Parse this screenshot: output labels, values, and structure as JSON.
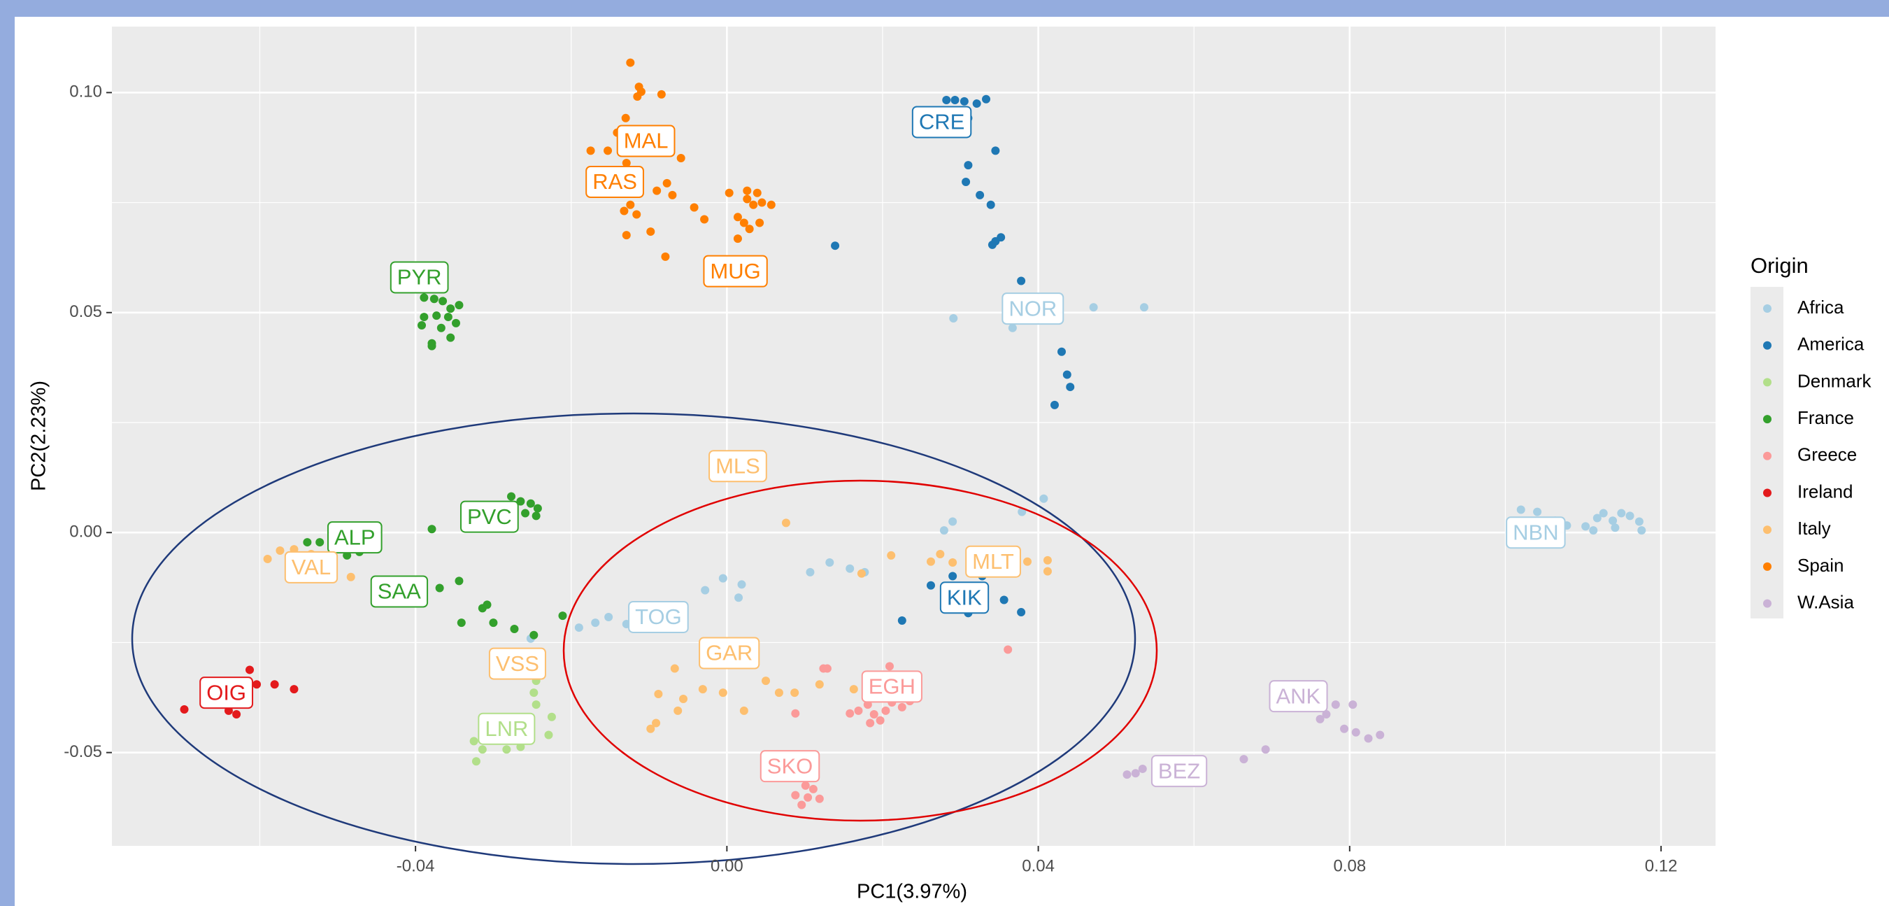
{
  "chart_data": {
    "type": "scatter",
    "xlabel": "PC1(3.97%)",
    "ylabel": "PC2(2.23%)",
    "legend_title": "Origin",
    "legend_position": "right",
    "grid": true,
    "xlim": [
      -0.079,
      0.127
    ],
    "ylim": [
      -0.0712,
      0.115
    ],
    "xticks": [
      -0.04,
      {
        "value": 0,
        "label": "0.00"
      },
      0.04,
      0.08,
      0.12
    ],
    "yticks": [
      -0.05,
      {
        "value": 0,
        "label": "0.00"
      },
      0.05,
      {
        "value": 0.1,
        "label": "0.10"
      }
    ],
    "xgrid_minor": [
      -0.06,
      -0.02,
      0.02,
      0.06,
      0.1
    ],
    "ygrid_minor": [
      -0.025,
      0.025,
      0.075
    ],
    "series": [
      {
        "name": "Africa",
        "color": "#a6cee3",
        "x": [
          0.0291,
          0.0367,
          0.0471,
          0.0536,
          0.0381,
          0.102,
          0.1041,
          0.1064,
          0.1079,
          0.1103,
          0.1118,
          0.1126,
          0.1138,
          0.1149,
          0.116,
          0.1172,
          0.1175,
          0.1141,
          0.1113,
          -0.019,
          -0.0169,
          -0.0129,
          -0.0113,
          -0.0028,
          -0.0005,
          0.0019,
          0.0015,
          0.0107,
          0.0132,
          0.0158,
          0.0177,
          0.0279,
          0.029,
          0.0379,
          0.0407,
          -0.0252,
          -0.0152
        ],
        "y": [
          0.0487,
          0.0465,
          0.0512,
          0.0512,
          0.0504,
          0.0052,
          0.0047,
          0.0027,
          0.0016,
          0.0014,
          0.0033,
          0.0044,
          0.0027,
          0.0044,
          0.0038,
          0.0025,
          0.0005,
          0.0011,
          0.0005,
          -0.0216,
          -0.0205,
          -0.0208,
          -0.0186,
          -0.0131,
          -0.0104,
          -0.0118,
          -0.0148,
          -0.009,
          -0.0068,
          -0.0082,
          -0.009,
          0.0005,
          0.0025,
          0.0047,
          0.0077,
          -0.0241,
          -0.0192
        ]
      },
      {
        "name": "America",
        "color": "#1f78b4",
        "x": [
          0.0282,
          0.0293,
          0.0305,
          0.0321,
          0.0333,
          0.031,
          0.0345,
          0.031,
          0.0307,
          0.0325,
          0.0339,
          0.0345,
          0.0352,
          0.0341,
          0.0139,
          0.0378,
          0.043,
          0.0437,
          0.0441,
          0.0421,
          0.0262,
          0.0285,
          0.031,
          0.0356,
          0.0378,
          0.0225,
          0.0328,
          0.029
        ],
        "y": [
          0.0983,
          0.0983,
          0.098,
          0.0975,
          0.0985,
          0.0942,
          0.0868,
          0.0835,
          0.0797,
          0.0767,
          0.0745,
          0.0662,
          0.0671,
          0.0654,
          0.0652,
          0.0572,
          0.0411,
          0.0359,
          0.0331,
          0.029,
          -0.012,
          -0.0123,
          -0.0183,
          -0.0153,
          -0.0181,
          -0.02,
          -0.0099,
          -0.0099
        ]
      },
      {
        "name": "Denmark",
        "color": "#b2df8a",
        "x": [
          -0.0325,
          -0.0314,
          -0.0296,
          -0.0273,
          -0.0252,
          -0.0245,
          -0.0248,
          -0.0245,
          -0.0225,
          -0.0229,
          -0.0322,
          -0.0283,
          -0.0265
        ],
        "y": [
          -0.0474,
          -0.0493,
          -0.046,
          -0.0454,
          -0.0424,
          -0.0391,
          -0.0364,
          -0.0337,
          -0.0419,
          -0.046,
          -0.052,
          -0.0493,
          -0.0487
        ]
      },
      {
        "name": "France",
        "color": "#33a02c",
        "x": [
          -0.0389,
          -0.0376,
          -0.0365,
          -0.0355,
          -0.0344,
          -0.0389,
          -0.0373,
          -0.0358,
          -0.0392,
          -0.0367,
          -0.0348,
          -0.0379,
          -0.0355,
          -0.0379,
          -0.0277,
          -0.0265,
          -0.0252,
          -0.0243,
          -0.0259,
          -0.0245,
          -0.0379,
          -0.0539,
          -0.0523,
          -0.05,
          -0.0488,
          -0.0472,
          -0.0398,
          -0.0369,
          -0.0344,
          -0.0314,
          -0.0308,
          -0.0341,
          -0.03,
          -0.0273,
          -0.0248,
          -0.0211
        ],
        "y": [
          0.0534,
          0.0531,
          0.0526,
          0.0509,
          0.0517,
          0.049,
          0.0493,
          0.049,
          0.0471,
          0.0465,
          0.0476,
          0.043,
          0.0443,
          0.0424,
          0.0082,
          0.0071,
          0.0066,
          0.0055,
          0.0044,
          0.0038,
          0.0008,
          -0.0022,
          -0.0022,
          -0.0033,
          -0.0052,
          -0.0044,
          -0.0123,
          -0.0126,
          -0.011,
          -0.0172,
          -0.0164,
          -0.0205,
          -0.0205,
          -0.0219,
          -0.0233,
          -0.0189
        ]
      },
      {
        "name": "Greece",
        "color": "#fb9a99",
        "x": [
          0.0158,
          0.0169,
          0.0181,
          0.0189,
          0.0197,
          0.0204,
          0.0212,
          0.0225,
          0.0235,
          0.0184,
          0.0209,
          0.0181,
          0.0124,
          0.0129,
          0.0088,
          0.0096,
          0.0104,
          0.0111,
          0.0119,
          0.0101,
          0.0088,
          0.0361
        ],
        "y": [
          -0.0411,
          -0.0405,
          -0.0391,
          -0.0413,
          -0.0427,
          -0.0405,
          -0.0386,
          -0.0397,
          -0.0383,
          -0.0433,
          -0.0304,
          -0.0323,
          -0.0309,
          -0.0309,
          -0.0597,
          -0.0619,
          -0.0602,
          -0.0583,
          -0.0605,
          -0.0575,
          -0.0411,
          -0.0266
        ]
      },
      {
        "name": "Ireland",
        "color": "#e31a1c",
        "x": [
          -0.0697,
          -0.064,
          -0.063,
          -0.0613,
          -0.0604,
          -0.0581,
          -0.0556
        ],
        "y": [
          -0.0402,
          -0.0405,
          -0.0413,
          -0.0312,
          -0.0345,
          -0.0345,
          -0.0356
        ]
      },
      {
        "name": "Italy",
        "color": "#fdbf6f",
        "x": [
          -0.059,
          -0.0574,
          -0.0556,
          -0.0548,
          -0.0534,
          -0.0483,
          0.0262,
          0.0274,
          0.029,
          0.0324,
          0.0348,
          0.0367,
          0.0386,
          0.0412,
          0.0412,
          0.0211,
          0.0173,
          0.0076,
          -0.0067,
          -0.0088,
          -0.0063,
          -0.0056,
          -0.0031,
          -0.0005,
          0.0022,
          0.005,
          0.0067,
          0.0087,
          0.0119,
          0.0163,
          -0.0091,
          -0.0098,
          -0.0268,
          -0.0248
        ],
        "y": [
          -0.006,
          -0.0041,
          -0.0038,
          -0.006,
          -0.0049,
          -0.0101,
          -0.0066,
          -0.0049,
          -0.0068,
          -0.0057,
          -0.0077,
          -0.0071,
          -0.0066,
          -0.0063,
          -0.0088,
          -0.0052,
          -0.0093,
          0.0022,
          -0.0309,
          -0.0367,
          -0.0405,
          -0.0378,
          -0.0356,
          -0.0364,
          -0.0405,
          -0.0337,
          -0.0364,
          -0.0364,
          -0.0345,
          -0.0356,
          -0.0433,
          -0.0446,
          -0.0315,
          -0.0323
        ]
      },
      {
        "name": "Spain",
        "color": "#ff7f00",
        "x": [
          -0.0124,
          -0.0113,
          -0.011,
          -0.0115,
          -0.0084,
          -0.013,
          -0.0141,
          -0.0175,
          -0.0153,
          -0.0059,
          -0.0129,
          -0.0133,
          -0.0119,
          -0.009,
          -0.0077,
          -0.007,
          -0.0113,
          -0.0124,
          -0.0132,
          -0.0116,
          -0.0129,
          -0.0098,
          -0.0079,
          -0.0042,
          -0.0029,
          0.0014,
          0.0026,
          0.0039,
          0.0034,
          0.0045,
          0.0022,
          0.0029,
          0.0042,
          0.0014,
          0.0026,
          0.0057,
          0.0003
        ],
        "y": [
          0.1068,
          0.1013,
          0.1002,
          0.0991,
          0.0996,
          0.0942,
          0.0909,
          0.0868,
          0.0868,
          0.0851,
          0.084,
          0.0813,
          0.0799,
          0.0777,
          0.0794,
          0.0767,
          0.0772,
          0.0745,
          0.0731,
          0.0723,
          0.0676,
          0.0684,
          0.0627,
          0.0739,
          0.0712,
          0.0717,
          0.0777,
          0.0772,
          0.0745,
          0.075,
          0.0704,
          0.069,
          0.0704,
          0.0668,
          0.0758,
          0.0745,
          0.0772
        ]
      },
      {
        "name": "W.Asia",
        "color": "#cab2d6",
        "x": [
          0.0514,
          0.0525,
          0.0534,
          0.0664,
          0.0692,
          0.0762,
          0.077,
          0.0782,
          0.0793,
          0.0804,
          0.0808,
          0.0824,
          0.0839
        ],
        "y": [
          -0.055,
          -0.0547,
          -0.0537,
          -0.0515,
          -0.0493,
          -0.0424,
          -0.0413,
          -0.0391,
          -0.0446,
          -0.0391,
          -0.0454,
          -0.0468,
          -0.046
        ]
      }
    ],
    "annotations": [
      {
        "text": "CRE",
        "x": 0.0276,
        "y": 0.0933,
        "color": "#1f78b4"
      },
      {
        "text": "NOR",
        "x": 0.0393,
        "y": 0.0509,
        "color": "#a6cee3"
      },
      {
        "text": "MAL",
        "x": -0.0104,
        "y": 0.089,
        "color": "#ff7f00"
      },
      {
        "text": "RAS",
        "x": -0.0144,
        "y": 0.0797,
        "color": "#ff7f00"
      },
      {
        "text": "MUG",
        "x": 0.0011,
        "y": 0.0594,
        "color": "#ff7f00"
      },
      {
        "text": "PYR",
        "x": -0.0395,
        "y": 0.058,
        "color": "#33a02c"
      },
      {
        "text": "MLS",
        "x": 0.0014,
        "y": 0.0151,
        "color": "#fdbf6f"
      },
      {
        "text": "PVC",
        "x": -0.0305,
        "y": 0.0036,
        "color": "#33a02c"
      },
      {
        "text": "ALP",
        "x": -0.0478,
        "y": -0.0011,
        "color": "#33a02c"
      },
      {
        "text": "VAL",
        "x": -0.0534,
        "y": -0.0079,
        "color": "#fdbf6f"
      },
      {
        "text": "SAA",
        "x": -0.0421,
        "y": -0.0134,
        "color": "#33a02c"
      },
      {
        "text": "TOG",
        "x": -0.0088,
        "y": -0.0192,
        "color": "#a6cee3"
      },
      {
        "text": "MLT",
        "x": 0.0342,
        "y": -0.0066,
        "color": "#fdbf6f"
      },
      {
        "text": "KIK",
        "x": 0.0305,
        "y": -0.0148,
        "color": "#1f78b4"
      },
      {
        "text": "NBN",
        "x": 0.1039,
        "y": 0,
        "color": "#a6cee3"
      },
      {
        "text": "VSS",
        "x": -0.0269,
        "y": -0.0298,
        "color": "#fdbf6f"
      },
      {
        "text": "GAR",
        "x": 0.0003,
        "y": -0.0274,
        "color": "#fdbf6f"
      },
      {
        "text": "EGH",
        "x": 0.0212,
        "y": -0.035,
        "color": "#fb9a99"
      },
      {
        "text": "OIG",
        "x": -0.0643,
        "y": -0.0364,
        "color": "#e31a1c"
      },
      {
        "text": "ANK",
        "x": 0.0734,
        "y": -0.0372,
        "color": "#cab2d6"
      },
      {
        "text": "LNR",
        "x": -0.0283,
        "y": -0.0446,
        "color": "#b2df8a"
      },
      {
        "text": "SKO",
        "x": 0.0081,
        "y": -0.0531,
        "color": "#fb9a99"
      },
      {
        "text": "BEZ",
        "x": 0.0581,
        "y": -0.0542,
        "color": "#cab2d6"
      }
    ]
  }
}
